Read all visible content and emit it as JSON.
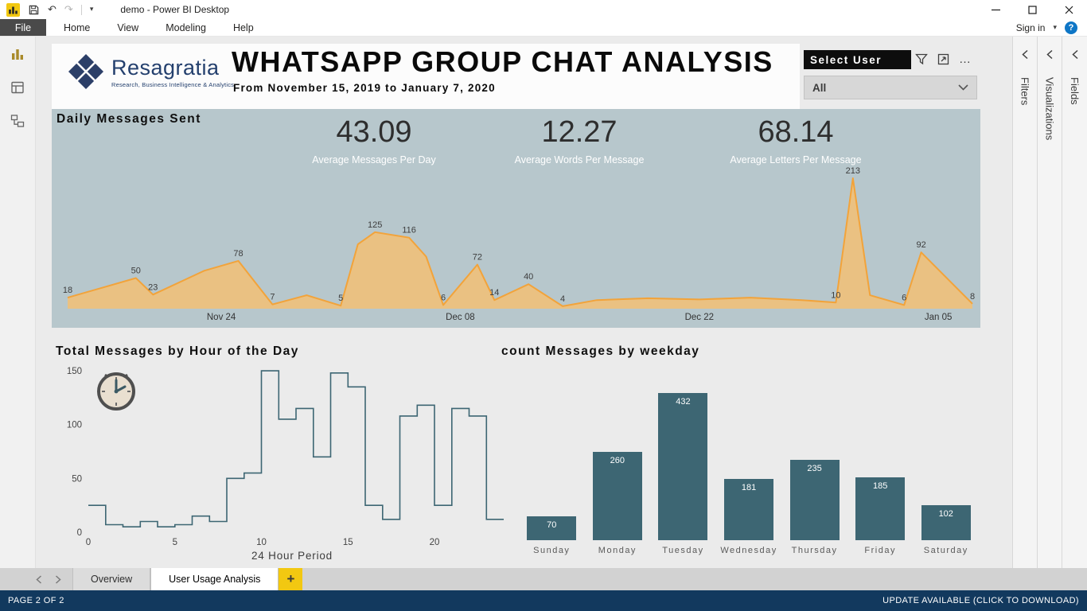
{
  "window": {
    "title": "demo - Power BI Desktop"
  },
  "icons": {
    "undo": "↶",
    "redo": "↷",
    "caret": "▾",
    "help": "?",
    "ellipsis": "…"
  },
  "ribbon": {
    "file_label": "File",
    "tabs": [
      {
        "label": "Home"
      },
      {
        "label": "View"
      },
      {
        "label": "Modeling"
      },
      {
        "label": "Help"
      }
    ],
    "sign_in": "Sign in"
  },
  "panes": [
    {
      "label": "Filters"
    },
    {
      "label": "Visualizations"
    },
    {
      "label": "Fields"
    }
  ],
  "header": {
    "logo_text": "Resagratia",
    "logo_tagline": "Research, Business Intelligence & Analytics",
    "title": "WHATSAPP GROUP CHAT ANALYSIS",
    "subtitle": "From November 15, 2019 to January 7, 2020"
  },
  "slicer": {
    "header": "Select User",
    "value": "All"
  },
  "kpis": [
    {
      "value": "43.09",
      "label": "Average Messages Per Day"
    },
    {
      "value": "12.27",
      "label": "Average Words Per Message"
    },
    {
      "value": "68.14",
      "label": "Average Letters Per Message"
    }
  ],
  "chart_data": [
    {
      "type": "area",
      "title": "Daily Messages Sent",
      "x_range_days": 53,
      "x_axis_ticks": [
        {
          "day": 9,
          "label": "Nov 24"
        },
        {
          "day": 23,
          "label": "Dec 08"
        },
        {
          "day": 37,
          "label": "Dec 22"
        },
        {
          "day": 51,
          "label": "Jan 05"
        }
      ],
      "ylim": [
        0,
        230
      ],
      "points": [
        {
          "d": 0,
          "v": 18,
          "label": "18"
        },
        {
          "d": 2,
          "v": 34
        },
        {
          "d": 4,
          "v": 50,
          "label": "50"
        },
        {
          "d": 5,
          "v": 23,
          "label": "23"
        },
        {
          "d": 8,
          "v": 62
        },
        {
          "d": 10,
          "v": 78,
          "label": "78"
        },
        {
          "d": 12,
          "v": 7,
          "label": "7"
        },
        {
          "d": 14,
          "v": 22
        },
        {
          "d": 16,
          "v": 5,
          "label": "5"
        },
        {
          "d": 17,
          "v": 105
        },
        {
          "d": 18,
          "v": 125,
          "label": "125"
        },
        {
          "d": 20,
          "v": 116,
          "label": "116"
        },
        {
          "d": 21,
          "v": 85
        },
        {
          "d": 22,
          "v": 6,
          "label": "6"
        },
        {
          "d": 24,
          "v": 72,
          "label": "72"
        },
        {
          "d": 25,
          "v": 14,
          "label": "14"
        },
        {
          "d": 27,
          "v": 40,
          "label": "40"
        },
        {
          "d": 29,
          "v": 4,
          "label": "4"
        },
        {
          "d": 31,
          "v": 14
        },
        {
          "d": 34,
          "v": 17
        },
        {
          "d": 37,
          "v": 15
        },
        {
          "d": 40,
          "v": 18
        },
        {
          "d": 43,
          "v": 14
        },
        {
          "d": 45,
          "v": 10,
          "label": "10"
        },
        {
          "d": 46,
          "v": 213,
          "label": "213"
        },
        {
          "d": 47,
          "v": 22
        },
        {
          "d": 49,
          "v": 6,
          "label": "6"
        },
        {
          "d": 50,
          "v": 92,
          "label": "92"
        },
        {
          "d": 53,
          "v": 8,
          "label": "8"
        }
      ],
      "colors": {
        "stroke": "#f2a33a",
        "fill": "#eec07c",
        "label": "#3d3d3d",
        "background": "#b7c7cc"
      }
    },
    {
      "type": "line-step",
      "title": "Total Messages by Hour of the Day",
      "xlabel": "24 Hour Period",
      "x_ticks": [
        0,
        5,
        10,
        15,
        20
      ],
      "y_ticks": [
        0,
        50,
        100,
        150
      ],
      "ylim": [
        0,
        155
      ],
      "values": [
        25,
        7,
        5,
        10,
        5,
        7,
        15,
        10,
        50,
        55,
        150,
        105,
        115,
        70,
        148,
        135,
        25,
        12,
        108,
        118,
        25,
        115,
        108,
        12
      ],
      "colors": {
        "line": "#3d6673"
      }
    },
    {
      "type": "bar",
      "title": "count Messages by weekday",
      "categories": [
        "Sunday",
        "Monday",
        "Tuesday",
        "Wednesday",
        "Thursday",
        "Friday",
        "Saturday"
      ],
      "values": [
        70,
        260,
        432,
        181,
        235,
        185,
        102
      ],
      "ylim": [
        0,
        432
      ],
      "colors": {
        "bar": "#3d6673",
        "value_label": "#ffffff",
        "category_label": "#5a5a5a"
      }
    }
  ],
  "page_tabs": {
    "tabs": [
      {
        "label": "Overview",
        "active": false
      },
      {
        "label": "User Usage Analysis",
        "active": true
      }
    ],
    "new_page": "+"
  },
  "status_bar": {
    "left": "PAGE 2 OF 2",
    "right": "UPDATE AVAILABLE (CLICK TO DOWNLOAD)"
  }
}
